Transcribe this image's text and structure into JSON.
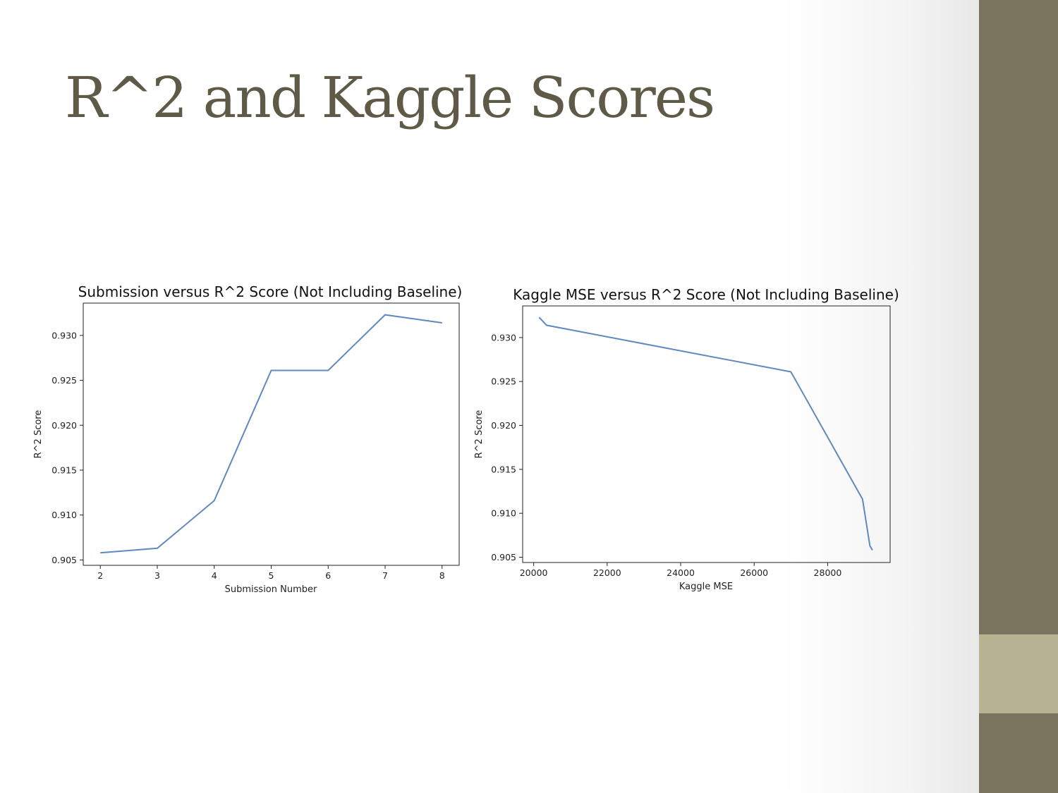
{
  "slide": {
    "title": "R^2 and Kaggle Scores",
    "colors": {
      "title": "#5e5a47",
      "sidebar": "#7a735e",
      "sidebar_accent": "#b6b292",
      "line": "#5f89bf"
    }
  },
  "chart_data": [
    {
      "type": "line",
      "title": "Submission versus R^2 Score (Not Including Baseline)",
      "xlabel": "Submission Number",
      "ylabel": "R^2 Score",
      "x": [
        2,
        3,
        4,
        5,
        6,
        7,
        8
      ],
      "y": [
        0.9058,
        0.9063,
        0.9116,
        0.9261,
        0.9261,
        0.9323,
        0.9314
      ],
      "xlim": [
        1.7,
        8.3
      ],
      "ylim": [
        0.9044,
        0.9336
      ],
      "xticks": [
        2,
        3,
        4,
        5,
        6,
        7,
        8
      ],
      "xtick_labels": [
        "2",
        "3",
        "4",
        "5",
        "6",
        "7",
        "8"
      ],
      "yticks": [
        0.905,
        0.91,
        0.915,
        0.92,
        0.925,
        0.93
      ],
      "ytick_labels": [
        "0.905",
        "0.910",
        "0.915",
        "0.920",
        "0.925",
        "0.930"
      ],
      "grid": false
    },
    {
      "type": "line",
      "title": "Kaggle MSE versus R^2 Score (Not Including Baseline)",
      "xlabel": "Kaggle MSE",
      "ylabel": "R^2 Score",
      "x": [
        20150,
        20350,
        27000,
        28950,
        29150,
        29220
      ],
      "y": [
        0.9323,
        0.9314,
        0.9261,
        0.9116,
        0.9063,
        0.9058
      ],
      "xlim": [
        19700,
        29700
      ],
      "ylim": [
        0.9044,
        0.9336
      ],
      "xticks": [
        20000,
        22000,
        24000,
        26000,
        28000
      ],
      "xtick_labels": [
        "20000",
        "22000",
        "24000",
        "26000",
        "28000"
      ],
      "yticks": [
        0.905,
        0.91,
        0.915,
        0.92,
        0.925,
        0.93
      ],
      "ytick_labels": [
        "0.905",
        "0.910",
        "0.915",
        "0.920",
        "0.925",
        "0.930"
      ],
      "grid": false
    }
  ]
}
